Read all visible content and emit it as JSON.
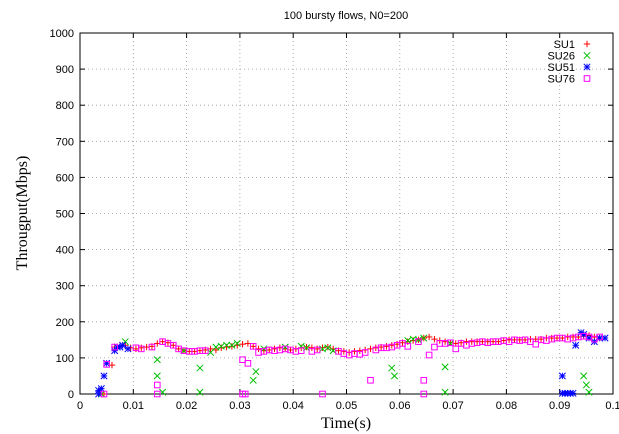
{
  "chart_data": {
    "type": "scatter",
    "title": "100 bursty flows, N0=200",
    "xlabel": "Time(s)",
    "ylabel": "Througput(Mbps)",
    "xlim": [
      0,
      0.1
    ],
    "ylim": [
      0,
      1000
    ],
    "x_ticks": [
      "0",
      "0.01",
      "0.02",
      "0.03",
      "0.04",
      "0.05",
      "0.06",
      "0.07",
      "0.08",
      "0.09",
      "0.1"
    ],
    "y_ticks": [
      "0",
      "100",
      "200",
      "300",
      "400",
      "500",
      "600",
      "700",
      "800",
      "900",
      "1000"
    ],
    "grid": true,
    "legend_position": "top-right",
    "series": [
      {
        "name": "SU1",
        "color": "#ff0000",
        "marker": "plus",
        "points": [
          [
            0.0035,
            0
          ],
          [
            0.0045,
            0
          ],
          [
            0.006,
            80
          ],
          [
            0.0065,
            130
          ],
          [
            0.0075,
            132
          ],
          [
            0.0085,
            135
          ],
          [
            0.0095,
            128
          ],
          [
            0.0105,
            125
          ],
          [
            0.0115,
            128
          ],
          [
            0.0125,
            130
          ],
          [
            0.0135,
            132
          ],
          [
            0.0145,
            140
          ],
          [
            0.0155,
            145
          ],
          [
            0.0165,
            142
          ],
          [
            0.0175,
            135
          ],
          [
            0.0185,
            125
          ],
          [
            0.0195,
            120
          ],
          [
            0.0205,
            118
          ],
          [
            0.0215,
            118
          ],
          [
            0.0225,
            120
          ],
          [
            0.0235,
            122
          ],
          [
            0.0245,
            125
          ],
          [
            0.0255,
            122
          ],
          [
            0.0265,
            128
          ],
          [
            0.0275,
            130
          ],
          [
            0.0285,
            132
          ],
          [
            0.0295,
            135
          ],
          [
            0.0305,
            138
          ],
          [
            0.0315,
            140
          ],
          [
            0.0325,
            132
          ],
          [
            0.0335,
            125
          ],
          [
            0.0345,
            120
          ],
          [
            0.0355,
            122
          ],
          [
            0.0365,
            125
          ],
          [
            0.0375,
            128
          ],
          [
            0.0385,
            125
          ],
          [
            0.0395,
            122
          ],
          [
            0.0405,
            125
          ],
          [
            0.0415,
            128
          ],
          [
            0.0425,
            130
          ],
          [
            0.0435,
            128
          ],
          [
            0.0445,
            125
          ],
          [
            0.0455,
            128
          ],
          [
            0.0465,
            130
          ],
          [
            0.0475,
            125
          ],
          [
            0.0485,
            120
          ],
          [
            0.0495,
            118
          ],
          [
            0.0505,
            115
          ],
          [
            0.0515,
            118
          ],
          [
            0.0525,
            120
          ],
          [
            0.0535,
            122
          ],
          [
            0.0545,
            125
          ],
          [
            0.0555,
            128
          ],
          [
            0.0565,
            130
          ],
          [
            0.0575,
            132
          ],
          [
            0.0585,
            135
          ],
          [
            0.0595,
            138
          ],
          [
            0.0605,
            142
          ],
          [
            0.0615,
            145
          ],
          [
            0.0625,
            148
          ],
          [
            0.0635,
            150
          ],
          [
            0.0645,
            155
          ],
          [
            0.0655,
            158
          ],
          [
            0.0665,
            152
          ],
          [
            0.0675,
            148
          ],
          [
            0.0685,
            145
          ],
          [
            0.0695,
            142
          ],
          [
            0.0705,
            140
          ],
          [
            0.0715,
            142
          ],
          [
            0.0725,
            145
          ],
          [
            0.0735,
            145
          ],
          [
            0.0745,
            145
          ],
          [
            0.0755,
            145
          ],
          [
            0.0765,
            145
          ],
          [
            0.0775,
            145
          ],
          [
            0.0785,
            145
          ],
          [
            0.0795,
            148
          ],
          [
            0.0805,
            150
          ],
          [
            0.0815,
            150
          ],
          [
            0.0825,
            150
          ],
          [
            0.0835,
            150
          ],
          [
            0.0845,
            152
          ],
          [
            0.0855,
            152
          ],
          [
            0.0865,
            152
          ],
          [
            0.0875,
            155
          ],
          [
            0.0885,
            155
          ],
          [
            0.0895,
            155
          ],
          [
            0.0905,
            155
          ],
          [
            0.0915,
            158
          ],
          [
            0.0925,
            158
          ],
          [
            0.0935,
            158
          ],
          [
            0.0945,
            160
          ],
          [
            0.0955,
            162
          ],
          [
            0.0965,
            158
          ],
          [
            0.0975,
            155
          ]
        ]
      },
      {
        "name": "SU26",
        "color": "#00c000",
        "marker": "cross",
        "points": [
          [
            0.004,
            0
          ],
          [
            0.0085,
            145
          ],
          [
            0.0145,
            95
          ],
          [
            0.0145,
            50
          ],
          [
            0.0155,
            5
          ],
          [
            0.0195,
            120
          ],
          [
            0.0225,
            72
          ],
          [
            0.0225,
            5
          ],
          [
            0.0245,
            115
          ],
          [
            0.0255,
            130
          ],
          [
            0.0265,
            132
          ],
          [
            0.0275,
            135
          ],
          [
            0.0285,
            135
          ],
          [
            0.0295,
            140
          ],
          [
            0.0325,
            38
          ],
          [
            0.033,
            62
          ],
          [
            0.0345,
            125
          ],
          [
            0.0385,
            130
          ],
          [
            0.0415,
            132
          ],
          [
            0.0425,
            128
          ],
          [
            0.0455,
            125
          ],
          [
            0.0465,
            128
          ],
          [
            0.0475,
            120
          ],
          [
            0.0585,
            72
          ],
          [
            0.059,
            50
          ],
          [
            0.0615,
            148
          ],
          [
            0.0625,
            152
          ],
          [
            0.0635,
            150
          ],
          [
            0.0645,
            155
          ],
          [
            0.0685,
            75
          ],
          [
            0.0685,
            5
          ],
          [
            0.0695,
            140
          ],
          [
            0.0945,
            50
          ],
          [
            0.095,
            25
          ],
          [
            0.0955,
            5
          ]
        ]
      },
      {
        "name": "SU51",
        "color": "#0000ff",
        "marker": "star",
        "points": [
          [
            0.0035,
            0
          ],
          [
            0.0035,
            10
          ],
          [
            0.004,
            15
          ],
          [
            0.0045,
            50
          ],
          [
            0.005,
            85
          ],
          [
            0.0065,
            120
          ],
          [
            0.007,
            130
          ],
          [
            0.0075,
            130
          ],
          [
            0.008,
            135
          ],
          [
            0.009,
            125
          ],
          [
            0.0905,
            50
          ],
          [
            0.0905,
            2
          ],
          [
            0.091,
            2
          ],
          [
            0.0915,
            2
          ],
          [
            0.092,
            2
          ],
          [
            0.0925,
            2
          ],
          [
            0.093,
            135
          ],
          [
            0.094,
            170
          ],
          [
            0.0945,
            165
          ],
          [
            0.0955,
            155
          ],
          [
            0.0965,
            145
          ],
          [
            0.0975,
            155
          ],
          [
            0.0985,
            155
          ]
        ]
      },
      {
        "name": "SU76",
        "color": "#ff00ff",
        "marker": "square",
        "points": [
          [
            0.0045,
            0
          ],
          [
            0.005,
            82
          ],
          [
            0.0065,
            130
          ],
          [
            0.0105,
            128
          ],
          [
            0.0115,
            125
          ],
          [
            0.0135,
            130
          ],
          [
            0.0145,
            25
          ],
          [
            0.0145,
            0
          ],
          [
            0.0155,
            145
          ],
          [
            0.0165,
            140
          ],
          [
            0.0175,
            135
          ],
          [
            0.0185,
            125
          ],
          [
            0.0195,
            120
          ],
          [
            0.0205,
            118
          ],
          [
            0.0215,
            118
          ],
          [
            0.0225,
            120
          ],
          [
            0.0235,
            120
          ],
          [
            0.0305,
            95
          ],
          [
            0.0305,
            0
          ],
          [
            0.031,
            0
          ],
          [
            0.0315,
            85
          ],
          [
            0.0325,
            132
          ],
          [
            0.0335,
            115
          ],
          [
            0.0345,
            118
          ],
          [
            0.0355,
            122
          ],
          [
            0.0365,
            120
          ],
          [
            0.0375,
            122
          ],
          [
            0.0385,
            125
          ],
          [
            0.0395,
            122
          ],
          [
            0.0405,
            118
          ],
          [
            0.0415,
            120
          ],
          [
            0.0435,
            118
          ],
          [
            0.0445,
            122
          ],
          [
            0.0455,
            0
          ],
          [
            0.0485,
            118
          ],
          [
            0.0495,
            112
          ],
          [
            0.0505,
            108
          ],
          [
            0.0515,
            112
          ],
          [
            0.0525,
            110
          ],
          [
            0.0535,
            115
          ],
          [
            0.0545,
            38
          ],
          [
            0.0555,
            122
          ],
          [
            0.0565,
            128
          ],
          [
            0.0575,
            128
          ],
          [
            0.0585,
            130
          ],
          [
            0.0595,
            135
          ],
          [
            0.0605,
            140
          ],
          [
            0.0615,
            132
          ],
          [
            0.0635,
            145
          ],
          [
            0.0645,
            38
          ],
          [
            0.0645,
            0
          ],
          [
            0.0655,
            108
          ],
          [
            0.0665,
            130
          ],
          [
            0.0675,
            140
          ],
          [
            0.0685,
            140
          ],
          [
            0.0695,
            142
          ],
          [
            0.0705,
            125
          ],
          [
            0.0715,
            140
          ],
          [
            0.0725,
            135
          ],
          [
            0.0735,
            140
          ],
          [
            0.0745,
            142
          ],
          [
            0.0755,
            145
          ],
          [
            0.0765,
            142
          ],
          [
            0.0775,
            145
          ],
          [
            0.0785,
            145
          ],
          [
            0.0795,
            148
          ],
          [
            0.0805,
            145
          ],
          [
            0.0815,
            150
          ],
          [
            0.0825,
            148
          ],
          [
            0.0835,
            150
          ],
          [
            0.0845,
            145
          ],
          [
            0.0855,
            138
          ],
          [
            0.0865,
            150
          ],
          [
            0.0875,
            148
          ],
          [
            0.0885,
            152
          ],
          [
            0.0895,
            155
          ],
          [
            0.0905,
            155
          ],
          [
            0.0915,
            152
          ],
          [
            0.0925,
            155
          ],
          [
            0.0935,
            158
          ],
          [
            0.0945,
            160
          ],
          [
            0.0955,
            158
          ],
          [
            0.0965,
            152
          ],
          [
            0.0975,
            158
          ]
        ]
      }
    ]
  }
}
